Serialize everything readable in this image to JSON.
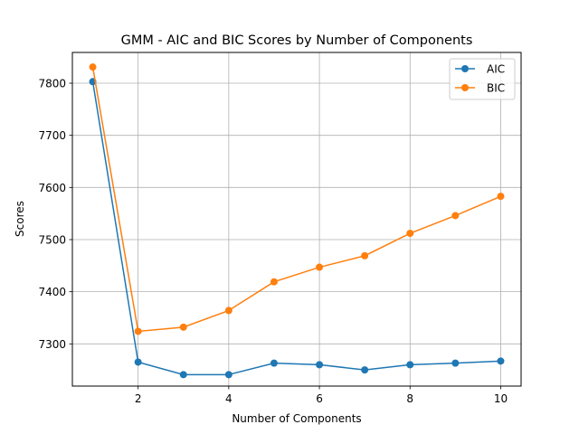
{
  "chart_data": {
    "type": "line",
    "title": "GMM - AIC and BIC Scores by Number of Components",
    "xlabel": "Number of Components",
    "ylabel": "Scores",
    "x": [
      1,
      2,
      3,
      4,
      5,
      6,
      7,
      8,
      9,
      10
    ],
    "xticks": [
      2,
      4,
      6,
      8,
      10
    ],
    "yticks": [
      7300,
      7400,
      7500,
      7600,
      7700,
      7800
    ],
    "xlim": [
      0.55,
      10.45
    ],
    "ylim": [
      7219,
      7859
    ],
    "grid": true,
    "legend_position": "top-right",
    "series": [
      {
        "name": "AIC",
        "color": "#1f77b4",
        "values": [
          7803,
          7265,
          7241,
          7241,
          7263,
          7260,
          7250,
          7260,
          7263,
          7267
        ]
      },
      {
        "name": "BIC",
        "color": "#ff7f0e",
        "values": [
          7831,
          7324,
          7332,
          7364,
          7419,
          7447,
          7469,
          7512,
          7546,
          7583
        ]
      }
    ]
  }
}
